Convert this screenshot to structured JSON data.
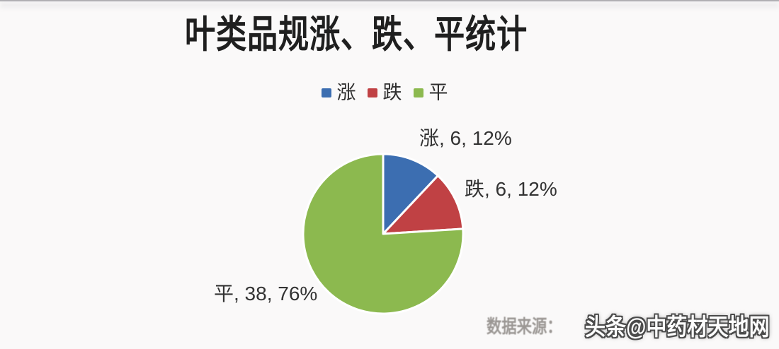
{
  "page": {
    "background": "#faf9f9"
  },
  "chart_data": {
    "type": "pie",
    "title": "叶类品规涨、跌、平统计",
    "categories": [
      "涨",
      "跌",
      "平"
    ],
    "values": [
      6,
      6,
      38
    ],
    "percents": [
      "12%",
      "12%",
      "76%"
    ],
    "colors": [
      "#3C6EB1",
      "#C04144",
      "#8CB94F"
    ],
    "semantic_keys": [
      "rise",
      "fall",
      "flat"
    ],
    "start_angle_deg": 0,
    "direction": "clockwise",
    "legend_position": "top",
    "slice_border_color": "#ffffff",
    "data_labels": [
      "涨, 6, 12%",
      "跌, 6, 12%",
      "平, 38, 76%"
    ]
  },
  "footer": {
    "source_label": "数据来源：",
    "watermark": "头条@中药材天地网"
  }
}
